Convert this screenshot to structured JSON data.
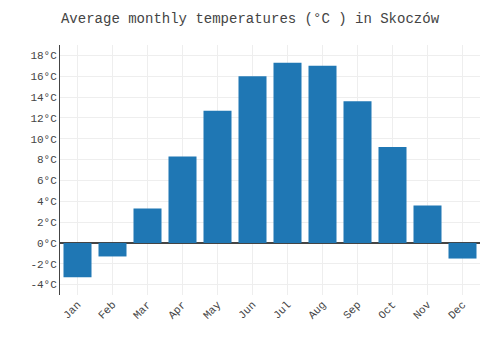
{
  "chart_data": {
    "type": "bar",
    "title": "Average monthly temperatures (°C ) in Skoczów",
    "categories": [
      "Jan",
      "Feb",
      "Mar",
      "Apr",
      "May",
      "Jun",
      "Jul",
      "Aug",
      "Sep",
      "Oct",
      "Nov",
      "Dec"
    ],
    "values": [
      -3.3,
      -1.3,
      3.3,
      8.3,
      12.7,
      16.0,
      17.3,
      17.0,
      13.6,
      9.2,
      3.6,
      -1.5
    ],
    "ylim": [
      -5,
      19
    ],
    "yticks": [
      {
        "value": -4,
        "label": "-4°C"
      },
      {
        "value": -2,
        "label": "-2°C"
      },
      {
        "value": 0,
        "label": "0°C"
      },
      {
        "value": 2,
        "label": "2°C"
      },
      {
        "value": 4,
        "label": "4°C"
      },
      {
        "value": 6,
        "label": "6°C"
      },
      {
        "value": 8,
        "label": "8°C"
      },
      {
        "value": 10,
        "label": "10°C"
      },
      {
        "value": 12,
        "label": "12°C"
      },
      {
        "value": 14,
        "label": "14°C"
      },
      {
        "value": 16,
        "label": "16°C"
      },
      {
        "value": 18,
        "label": "18°C"
      }
    ],
    "grid": true
  }
}
